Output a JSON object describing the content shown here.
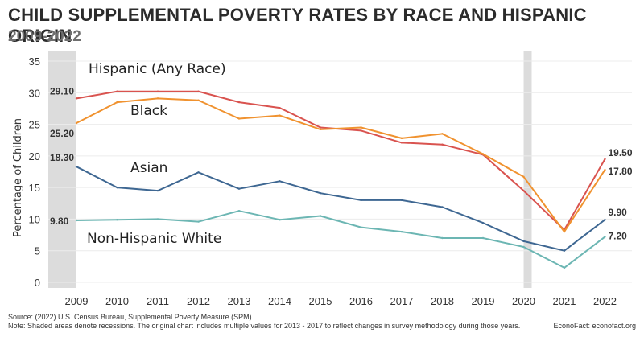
{
  "chart_data": {
    "type": "line",
    "title": "CHILD SUPPLEMENTAL POVERTY RATES BY RACE AND HISPANIC ORIGIN",
    "subtitle": "2009-2022",
    "xlabel": "",
    "ylabel": "Percentage of Children",
    "ylim": [
      0,
      35
    ],
    "yticks": [
      "0",
      "5",
      "10",
      "15",
      "20",
      "25",
      "30",
      "35"
    ],
    "x": [
      "2009",
      "2010",
      "2011",
      "2012",
      "2013",
      "2014",
      "2015",
      "2016",
      "2017",
      "2018",
      "2019",
      "2020",
      "2021",
      "2022"
    ],
    "recessions": [
      "2009",
      "2020"
    ],
    "grid": true,
    "series": [
      {
        "name": "Hispanic (Any Race)",
        "color": "#d9534f",
        "values": [
          29.1,
          30.2,
          30.2,
          30.2,
          28.5,
          27.6,
          24.5,
          24.0,
          22.1,
          21.8,
          20.2,
          14.5,
          8.3,
          19.5
        ],
        "start_label": "29.10",
        "end_label": "19.50"
      },
      {
        "name": "Black",
        "color": "#f0922f",
        "values": [
          25.2,
          28.5,
          29.1,
          28.8,
          25.9,
          26.4,
          24.2,
          24.5,
          22.8,
          23.5,
          20.3,
          16.7,
          8.0,
          17.8
        ],
        "start_label": "25.20",
        "end_label": "17.80"
      },
      {
        "name": "Asian",
        "color": "#3e6792",
        "values": [
          18.3,
          15.0,
          14.5,
          17.4,
          14.8,
          16.0,
          14.1,
          13.0,
          13.0,
          11.9,
          9.4,
          6.5,
          5.0,
          9.9
        ],
        "start_label": "18.30",
        "end_label": "9.90"
      },
      {
        "name": "Non-Hispanic White",
        "color": "#6cb6b3",
        "values": [
          9.8,
          9.9,
          10.0,
          9.6,
          11.3,
          9.9,
          10.5,
          8.7,
          8.0,
          7.0,
          7.0,
          5.6,
          2.3,
          7.2
        ],
        "start_label": "9.80",
        "end_label": "7.20"
      }
    ]
  },
  "footer": {
    "source": "Source: (2022) U.S. Census Bureau, Supplemental Poverty Measure (SPM)",
    "note": "Note: Shaded areas denote recessions. The original chart includes multiple values for 2013 - 2017 to reflect changes in survey methodology during those years.",
    "credit": "EconoFact: econofact.org"
  }
}
